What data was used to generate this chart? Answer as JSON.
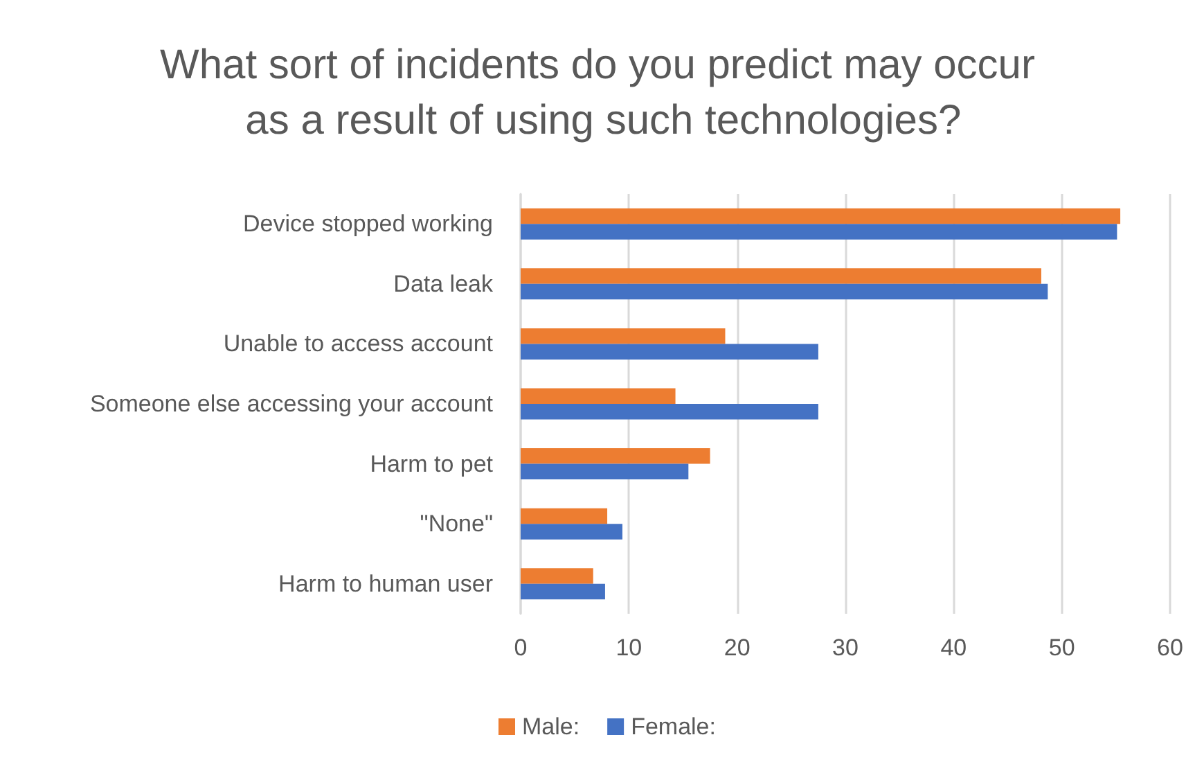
{
  "chart_data": {
    "type": "bar",
    "orientation": "horizontal",
    "title": "What sort of incidents do you predict may occur as a result of using such technologies?",
    "categories": [
      "Device stopped working",
      "Data leak",
      "Unable to access account",
      "Someone else accessing your account",
      "Harm to pet",
      "\"None\"",
      "Harm to human user"
    ],
    "series": [
      {
        "name": "Male:",
        "color": "#ed7d31",
        "values": [
          55.4,
          48.1,
          18.9,
          14.3,
          17.5,
          8.0,
          6.7
        ]
      },
      {
        "name": "Female:",
        "color": "#4472c4",
        "values": [
          55.1,
          48.7,
          27.5,
          27.5,
          15.5,
          9.4,
          7.8
        ]
      }
    ],
    "xlim": [
      0,
      60
    ],
    "xticks": [
      0,
      10,
      20,
      30,
      40,
      50,
      60
    ],
    "grid": "x",
    "legend": "bottom"
  }
}
